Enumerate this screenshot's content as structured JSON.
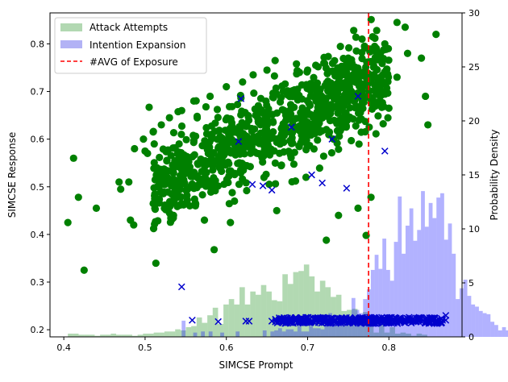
{
  "chart_data": {
    "type": "scatter",
    "xlabel": "SIMCSE Prompt",
    "ylabel_left": "SIMCSE Response",
    "ylabel_right": "Probability Density",
    "xlim": [
      0.383,
      0.89
    ],
    "ylim_left": [
      0.185,
      0.865
    ],
    "ylim_right": [
      0,
      30
    ],
    "x_ticks": [
      "0.4",
      "0.5",
      "0.6",
      "0.7",
      "0.8"
    ],
    "y_left_ticks": [
      "0.2",
      "0.3",
      "0.4",
      "0.5",
      "0.6",
      "0.7",
      "0.8"
    ],
    "y_right_ticks": [
      "0",
      "5",
      "10",
      "15",
      "20",
      "25",
      "30"
    ],
    "legend_position": "upper-left",
    "legend": [
      {
        "label": "Attack Attempts",
        "kind": "patch",
        "color": "#b2d8b2"
      },
      {
        "label": "Intention Expansion",
        "kind": "patch",
        "color": "#b2b2f5"
      },
      {
        "label": "#AVG of Exposure",
        "kind": "dashed-line",
        "color": "#ff0000"
      }
    ],
    "vline": {
      "x": 0.775,
      "color": "#ff0000",
      "style": "dashed",
      "label": "#AVG of Exposure"
    },
    "histograms": [
      {
        "name": "Attack Attempts",
        "color": "#008000",
        "alpha": 0.3,
        "axis": "right",
        "bin_start": 0.405,
        "bin_width": 0.0066,
        "densities": [
          0.3,
          0.3,
          0.2,
          0.2,
          0.2,
          0.1,
          0.2,
          0.2,
          0.3,
          0.2,
          0.2,
          0.2,
          0.1,
          0.2,
          0.3,
          0.3,
          0.4,
          0.4,
          0.5,
          0.5,
          0.7,
          0.6,
          0.9,
          1.0,
          1.8,
          1.3,
          2.0,
          2.7,
          1.2,
          3.0,
          3.5,
          3.0,
          4.6,
          3.0,
          4.2,
          3.9,
          4.8,
          4.2,
          3.4,
          3.3,
          5.8,
          4.9,
          6.0,
          6.1,
          6.7,
          5.6,
          4.2,
          5.2,
          4.6,
          3.7,
          3.9,
          2.4,
          2.5,
          2.6,
          1.5,
          2.3,
          1.8,
          0.4,
          1.3,
          0.4,
          0.9,
          0.3,
          0.4,
          0.3,
          0.1,
          0.3,
          0.2
        ]
      },
      {
        "name": "Intention Expansion",
        "color": "#0000ff",
        "alpha": 0.3,
        "axis": "right",
        "bin_start": 0.545,
        "bin_width": 0.00475,
        "densities": [
          1.5,
          0,
          0,
          0.4,
          0,
          0.5,
          0,
          0.5,
          0,
          0,
          0.4,
          0,
          0,
          0,
          0.5,
          0,
          0,
          0,
          0,
          0,
          0,
          0.6,
          0,
          0.5,
          0.6,
          0.8,
          0.5,
          0.7,
          0.7,
          0.5,
          1.0,
          0.5,
          0.5,
          1.0,
          0.8,
          0.8,
          0.7,
          1.5,
          2.2,
          1.6,
          1.3,
          1.5,
          1.0,
          1.8,
          3.6,
          2.5,
          2.2,
          3.5,
          4.4,
          6.2,
          7.6,
          6.3,
          9.1,
          6.2,
          5.2,
          8.8,
          13.0,
          7.7,
          10.3,
          11.9,
          8.9,
          9.9,
          13.5,
          10.2,
          12.4,
          11.0,
          12.9,
          13.3,
          9.0,
          10.5,
          7.7,
          3.5,
          4.5,
          5.3,
          3.8,
          3.0,
          2.8,
          2.4,
          2.2,
          2.1,
          1.4,
          1.1,
          0.6,
          0.9,
          0.6,
          0.8,
          1.2,
          1.0,
          2.3,
          1.0,
          2.3,
          1.4
        ]
      }
    ],
    "series": [
      {
        "name": "Attack Attempts",
        "marker": "circle",
        "color": "#008000",
        "sample_points": [
          [
            0.405,
            0.425
          ],
          [
            0.412,
            0.56
          ],
          [
            0.418,
            0.478
          ],
          [
            0.425,
            0.325
          ],
          [
            0.44,
            0.455
          ],
          [
            0.468,
            0.51
          ],
          [
            0.47,
            0.495
          ],
          [
            0.48,
            0.51
          ],
          [
            0.482,
            0.43
          ],
          [
            0.486,
            0.42
          ],
          [
            0.487,
            0.58
          ],
          [
            0.5,
            0.575
          ],
          [
            0.503,
            0.57
          ],
          [
            0.505,
            0.667
          ],
          [
            0.51,
            0.465
          ],
          [
            0.512,
            0.455
          ],
          [
            0.515,
            0.5
          ],
          [
            0.52,
            0.49
          ],
          [
            0.53,
            0.445
          ],
          [
            0.535,
            0.44
          ],
          [
            0.54,
            0.478
          ],
          [
            0.545,
            0.465
          ],
          [
            0.555,
            0.46
          ],
          [
            0.562,
            0.46
          ],
          [
            0.573,
            0.43
          ],
          [
            0.585,
            0.368
          ],
          [
            0.605,
            0.425
          ],
          [
            0.625,
            0.492
          ],
          [
            0.662,
            0.45
          ],
          [
            0.698,
            0.52
          ],
          [
            0.723,
            0.388
          ],
          [
            0.738,
            0.44
          ],
          [
            0.762,
            0.455
          ],
          [
            0.772,
            0.398
          ],
          [
            0.778,
            0.478
          ],
          [
            0.8,
            0.665
          ],
          [
            0.81,
            0.73
          ],
          [
            0.82,
            0.835
          ],
          [
            0.823,
            0.78
          ],
          [
            0.84,
            0.77
          ],
          [
            0.845,
            0.69
          ],
          [
            0.848,
            0.63
          ],
          [
            0.858,
            0.82
          ],
          [
            0.81,
            0.845
          ],
          [
            0.795,
            0.8
          ],
          [
            0.785,
            0.828
          ],
          [
            0.78,
            0.815
          ],
          [
            0.77,
            0.795
          ],
          [
            0.767,
            0.81
          ],
          [
            0.76,
            0.785
          ],
          [
            0.75,
            0.77
          ],
          [
            0.74,
            0.745
          ],
          [
            0.72,
            0.76
          ],
          [
            0.71,
            0.755
          ],
          [
            0.7,
            0.745
          ],
          [
            0.69,
            0.74
          ],
          [
            0.66,
            0.765
          ],
          [
            0.65,
            0.745
          ],
          [
            0.633,
            0.735
          ],
          [
            0.62,
            0.72
          ],
          [
            0.6,
            0.71
          ],
          [
            0.58,
            0.69
          ],
          [
            0.56,
            0.68
          ],
          [
            0.545,
            0.66
          ],
          [
            0.53,
            0.645
          ],
          [
            0.52,
            0.63
          ],
          [
            0.51,
            0.615
          ],
          [
            0.498,
            0.6
          ]
        ]
      },
      {
        "name": "Intention Expansion",
        "marker": "x",
        "color": "#0000cc",
        "sample_points": [
          [
            0.545,
            0.29
          ],
          [
            0.558,
            0.22
          ],
          [
            0.59,
            0.217
          ],
          [
            0.615,
            0.595
          ],
          [
            0.618,
            0.685
          ],
          [
            0.624,
            0.218
          ],
          [
            0.628,
            0.218
          ],
          [
            0.632,
            0.505
          ],
          [
            0.645,
            0.502
          ],
          [
            0.656,
            0.218
          ],
          [
            0.656,
            0.493
          ],
          [
            0.68,
            0.625
          ],
          [
            0.705,
            0.525
          ],
          [
            0.718,
            0.508
          ],
          [
            0.73,
            0.6
          ],
          [
            0.748,
            0.497
          ],
          [
            0.762,
            0.69
          ],
          [
            0.795,
            0.575
          ],
          [
            0.86,
            0.218
          ],
          [
            0.866,
            0.22
          ],
          [
            0.87,
            0.23
          ],
          [
            0.87,
            0.22
          ]
        ]
      }
    ],
    "x_band": {
      "series": "Intention Expansion",
      "x_from": 0.66,
      "x_to": 0.865,
      "y_from": 0.213,
      "y_to": 0.226
    }
  }
}
